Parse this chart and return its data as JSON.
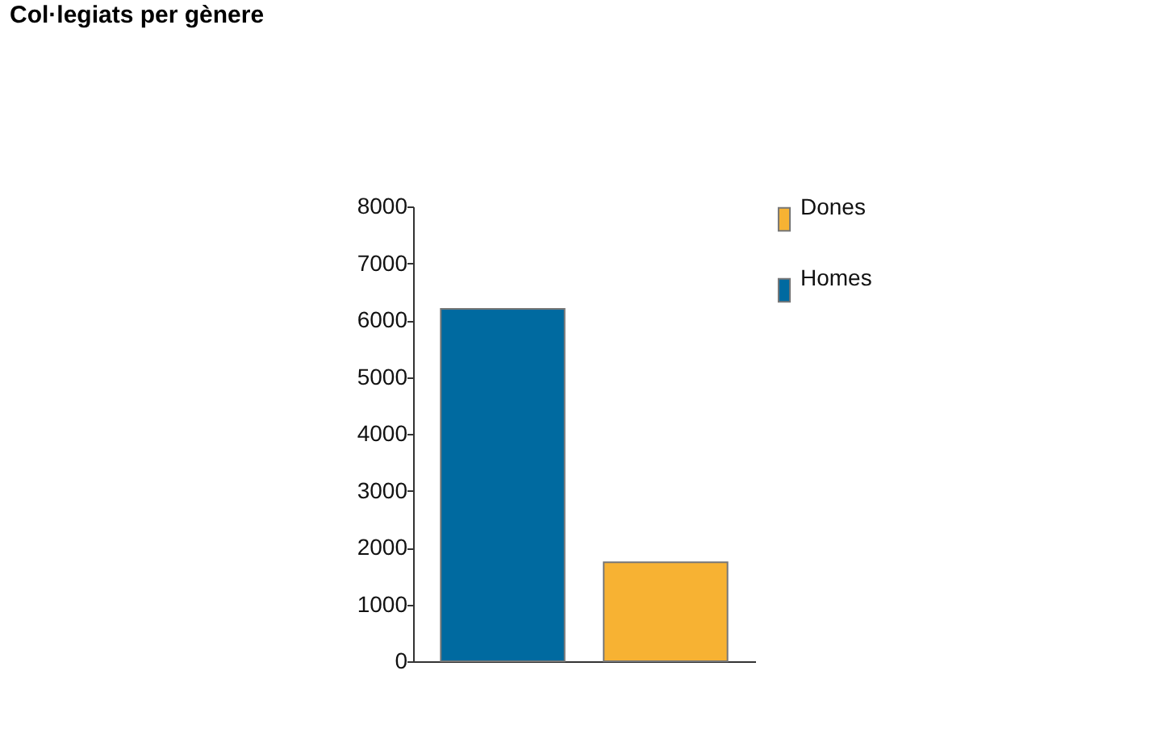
{
  "chart_data": {
    "type": "bar",
    "title": "Col·legiats per gènere",
    "categories": [
      null,
      null
    ],
    "series": [
      {
        "name": "Homes",
        "color": "#006aa0",
        "values": [
          6200,
          null
        ]
      },
      {
        "name": "Dones",
        "color": "#f7b233",
        "values": [
          null,
          1740
        ]
      }
    ],
    "ylim": [
      0,
      8000
    ],
    "yticks": [
      0,
      1000,
      2000,
      3000,
      4000,
      5000,
      6000,
      7000,
      8000
    ],
    "grid": false,
    "legend": "top right",
    "tick_labels": "y"
  }
}
